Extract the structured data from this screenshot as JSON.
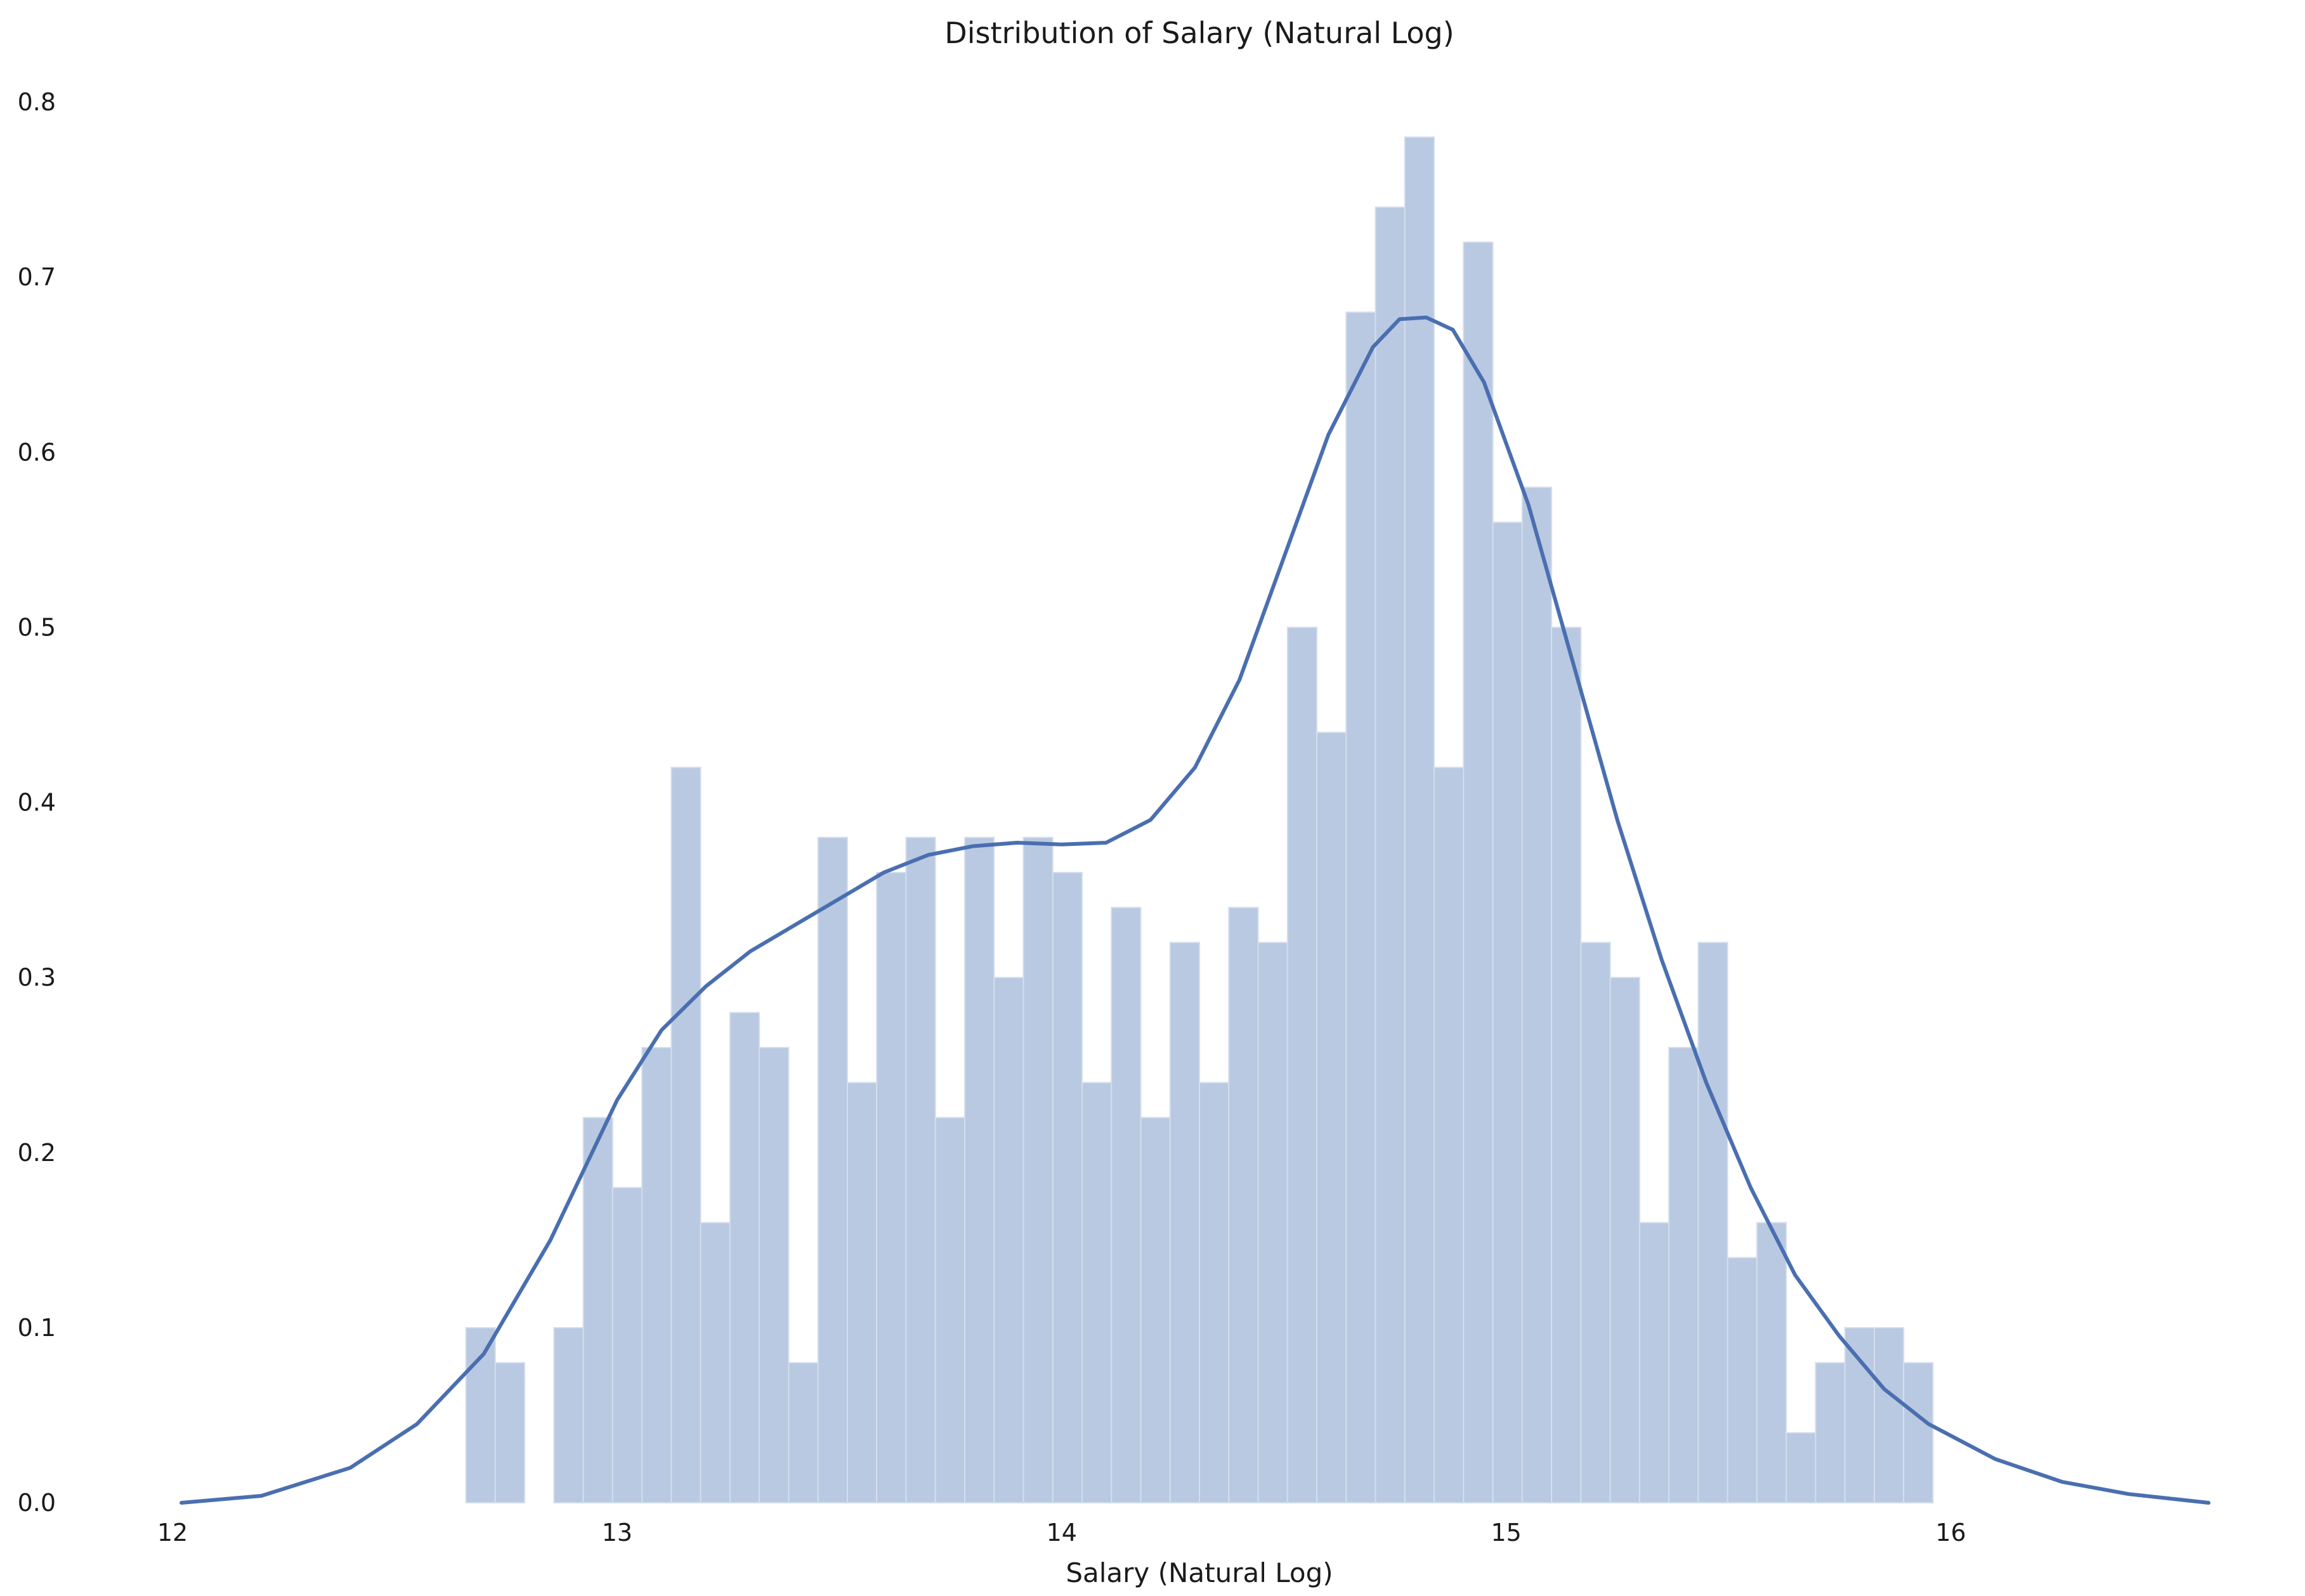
{
  "chart_data": {
    "type": "bar",
    "title": "Distribution of Salary (Natural Log)",
    "xlabel": "Salary (Natural Log)",
    "ylabel": "",
    "xlim": [
      12.0,
      16.58
    ],
    "ylim": [
      0.0,
      0.8
    ],
    "xticks": [
      12,
      13,
      14,
      15,
      16
    ],
    "yticks": [
      0.0,
      0.1,
      0.2,
      0.3,
      0.4,
      0.5,
      0.6,
      0.7,
      0.8
    ],
    "grid": false,
    "bin_width": 0.066,
    "bar_color": "#b9c9e1",
    "bar_edge_color": "#d4deed",
    "line_color": "#4a6fb0",
    "histogram": {
      "bin_starts": [
        12.66,
        12.726,
        12.792,
        12.858,
        12.924,
        12.99,
        13.056,
        13.122,
        13.188,
        13.254,
        13.32,
        13.386,
        13.452,
        13.518,
        13.584,
        13.65,
        13.716,
        13.782,
        13.848,
        13.914,
        13.98,
        14.046,
        14.112,
        14.178,
        14.244,
        14.31,
        14.376,
        14.442,
        14.508,
        14.574,
        14.64,
        14.706,
        14.772,
        14.838,
        14.904,
        14.97,
        15.036,
        15.102,
        15.168,
        15.234,
        15.3,
        15.366,
        15.432,
        15.498,
        15.564,
        15.63,
        15.696,
        15.762,
        15.828,
        15.894
      ],
      "values": [
        0.1,
        0.08,
        0.0,
        0.1,
        0.22,
        0.18,
        0.26,
        0.42,
        0.16,
        0.28,
        0.26,
        0.08,
        0.38,
        0.24,
        0.36,
        0.38,
        0.22,
        0.38,
        0.3,
        0.38,
        0.36,
        0.24,
        0.34,
        0.22,
        0.32,
        0.24,
        0.34,
        0.32,
        0.5,
        0.44,
        0.68,
        0.74,
        0.78,
        0.42,
        0.72,
        0.56,
        0.58,
        0.5,
        0.32,
        0.3,
        0.16,
        0.26,
        0.32,
        0.14,
        0.16,
        0.04,
        0.08,
        0.1,
        0.1,
        0.08
      ]
    },
    "kde": {
      "name": "",
      "x": [
        12.02,
        12.2,
        12.4,
        12.55,
        12.7,
        12.85,
        13.0,
        13.1,
        13.2,
        13.3,
        13.4,
        13.5,
        13.6,
        13.7,
        13.8,
        13.9,
        14.0,
        14.1,
        14.2,
        14.3,
        14.4,
        14.5,
        14.6,
        14.7,
        14.76,
        14.82,
        14.88,
        14.95,
        15.05,
        15.15,
        15.25,
        15.35,
        15.45,
        15.55,
        15.65,
        15.75,
        15.85,
        15.95,
        16.1,
        16.25,
        16.4,
        16.58
      ],
      "y": [
        0.0,
        0.004,
        0.02,
        0.045,
        0.085,
        0.15,
        0.23,
        0.27,
        0.295,
        0.315,
        0.33,
        0.345,
        0.36,
        0.37,
        0.375,
        0.377,
        0.376,
        0.377,
        0.39,
        0.42,
        0.47,
        0.54,
        0.61,
        0.66,
        0.676,
        0.677,
        0.67,
        0.64,
        0.57,
        0.48,
        0.39,
        0.31,
        0.24,
        0.18,
        0.13,
        0.095,
        0.065,
        0.045,
        0.025,
        0.012,
        0.005,
        0.0
      ]
    }
  }
}
